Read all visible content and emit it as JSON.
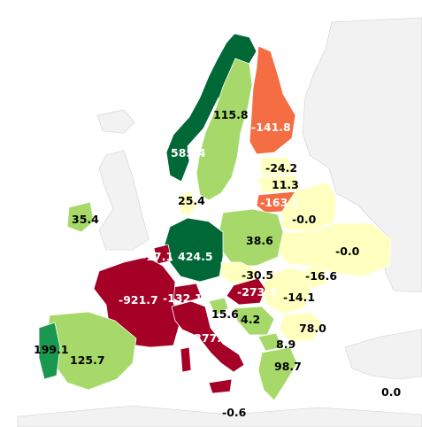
{
  "map": {
    "colors": {
      "dark_green": "#006837",
      "green": "#1a9850",
      "light_green": "#a6d96a",
      "pale_yellow": "#ffffbf",
      "orange": "#f46d43",
      "dark_red": "#a50026",
      "no_data": "#f2f2f2"
    },
    "regions": [
      {
        "id": "norway",
        "value": "585.4"
      },
      {
        "id": "sweden",
        "value": "115.8"
      },
      {
        "id": "finland",
        "value": "-141.8"
      },
      {
        "id": "estonia",
        "value": "-24.2"
      },
      {
        "id": "latvia",
        "value": "11.3"
      },
      {
        "id": "lithuania",
        "value": "-163.1"
      },
      {
        "id": "belarus",
        "value": "-0.0"
      },
      {
        "id": "denmark",
        "value": "25.4"
      },
      {
        "id": "ireland",
        "value": "35.4"
      },
      {
        "id": "poland",
        "value": "38.6"
      },
      {
        "id": "ukraine",
        "value": "-0.0"
      },
      {
        "id": "belgium",
        "value": "-17.1"
      },
      {
        "id": "germany",
        "value": "424.5"
      },
      {
        "id": "czechia",
        "value": "-30.5"
      },
      {
        "id": "hungary",
        "value": "-273.3"
      },
      {
        "id": "moldova",
        "value": "-16.6"
      },
      {
        "id": "romania",
        "value": "-14.1"
      },
      {
        "id": "france",
        "value": "-921.7"
      },
      {
        "id": "switzerland",
        "value": "-132.1"
      },
      {
        "id": "slovenia",
        "value": "15.6"
      },
      {
        "id": "serbia",
        "value": "4.2"
      },
      {
        "id": "bulgaria",
        "value": "78.0"
      },
      {
        "id": "italy",
        "value": "-377.9"
      },
      {
        "id": "macedonia",
        "value": "8.9"
      },
      {
        "id": "greece",
        "value": "98.7"
      },
      {
        "id": "portugal",
        "value": "199.1"
      },
      {
        "id": "spain",
        "value": "125.7"
      },
      {
        "id": "sicily",
        "value": "-0.6"
      },
      {
        "id": "turkey",
        "value": "0.0"
      }
    ]
  }
}
